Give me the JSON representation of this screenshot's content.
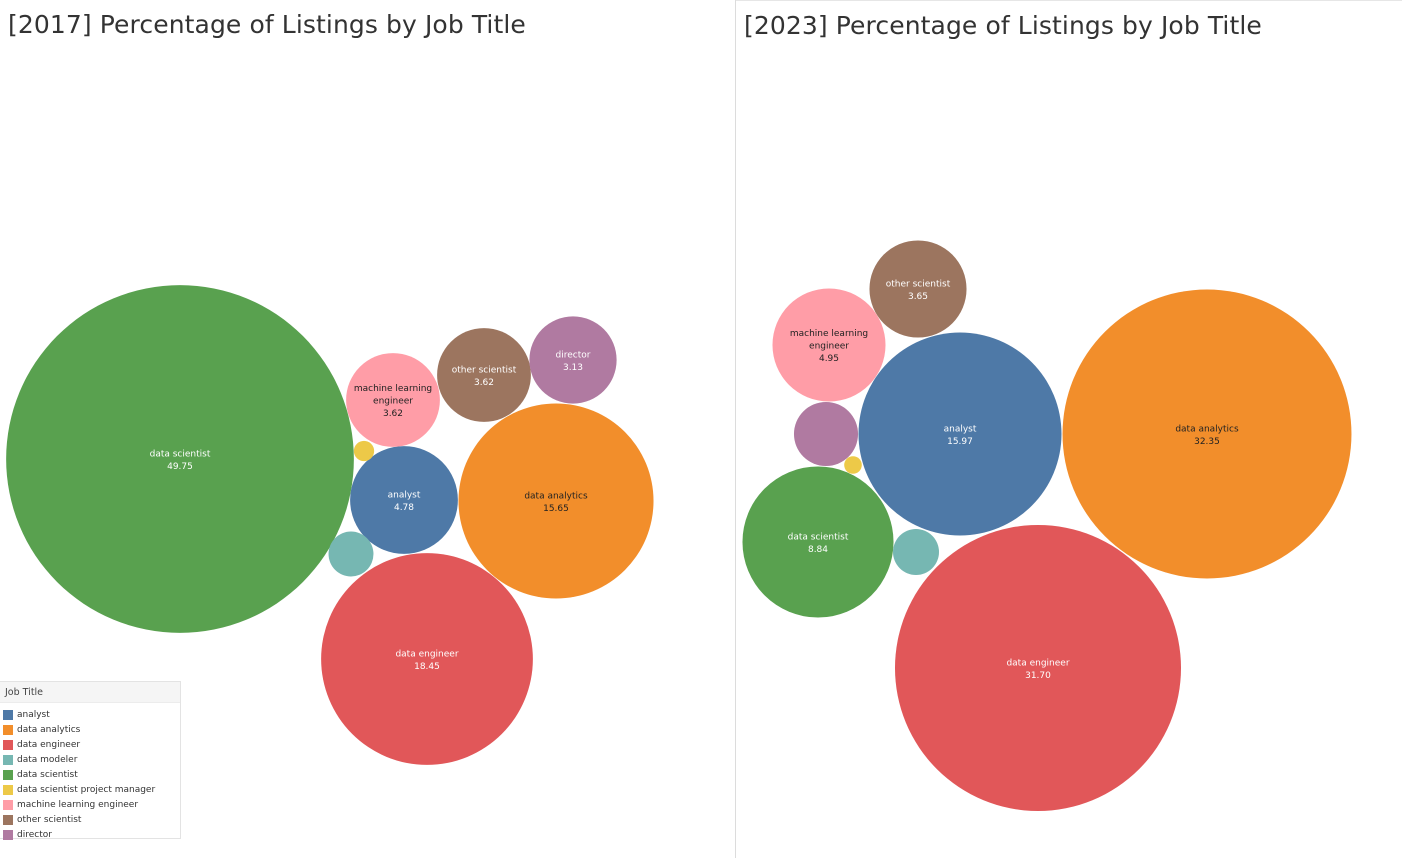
{
  "colors": {
    "analyst": "#4e79a7",
    "data analytics": "#f28e2b",
    "data engineer": "#e15759",
    "data modeler": "#76b7b2",
    "data scientist": "#59a14f",
    "data scientist project manager": "#edc948",
    "machine learning engineer": "#ff9da7",
    "other scientist": "#9c755f",
    "director": "#b07aa1"
  },
  "legend": {
    "title": "Job Title",
    "items": [
      "analyst",
      "data analytics",
      "data engineer",
      "data modeler",
      "data scientist",
      "data scientist project manager",
      "machine learning engineer",
      "other scientist",
      "director"
    ]
  },
  "chart_data": [
    {
      "type": "bubble",
      "title": "[2017] Percentage of Listings by Job Title",
      "series": [
        {
          "name": "data scientist",
          "value": 49.75
        },
        {
          "name": "data engineer",
          "value": 18.45
        },
        {
          "name": "data analytics",
          "value": 15.65
        },
        {
          "name": "analyst",
          "value": 4.78
        },
        {
          "name": "machine learning engineer",
          "value": 3.62
        },
        {
          "name": "other scientist",
          "value": 3.62
        },
        {
          "name": "director",
          "value": 3.13
        },
        {
          "name": "data modeler",
          "value": 0.83
        },
        {
          "name": "data scientist project manager",
          "value": 0.17
        }
      ]
    },
    {
      "type": "bubble",
      "title": "[2023] Percentage of Listings by Job Title",
      "series": [
        {
          "name": "data analytics",
          "value": 32.35
        },
        {
          "name": "data engineer",
          "value": 31.7
        },
        {
          "name": "analyst",
          "value": 15.97
        },
        {
          "name": "data scientist",
          "value": 8.84
        },
        {
          "name": "machine learning engineer",
          "value": 4.95
        },
        {
          "name": "other scientist",
          "value": 3.65
        },
        {
          "name": "director",
          "value": 1.59
        },
        {
          "name": "data modeler",
          "value": 0.82
        },
        {
          "name": "data scientist project manager",
          "value": 0.12
        }
      ]
    }
  ]
}
